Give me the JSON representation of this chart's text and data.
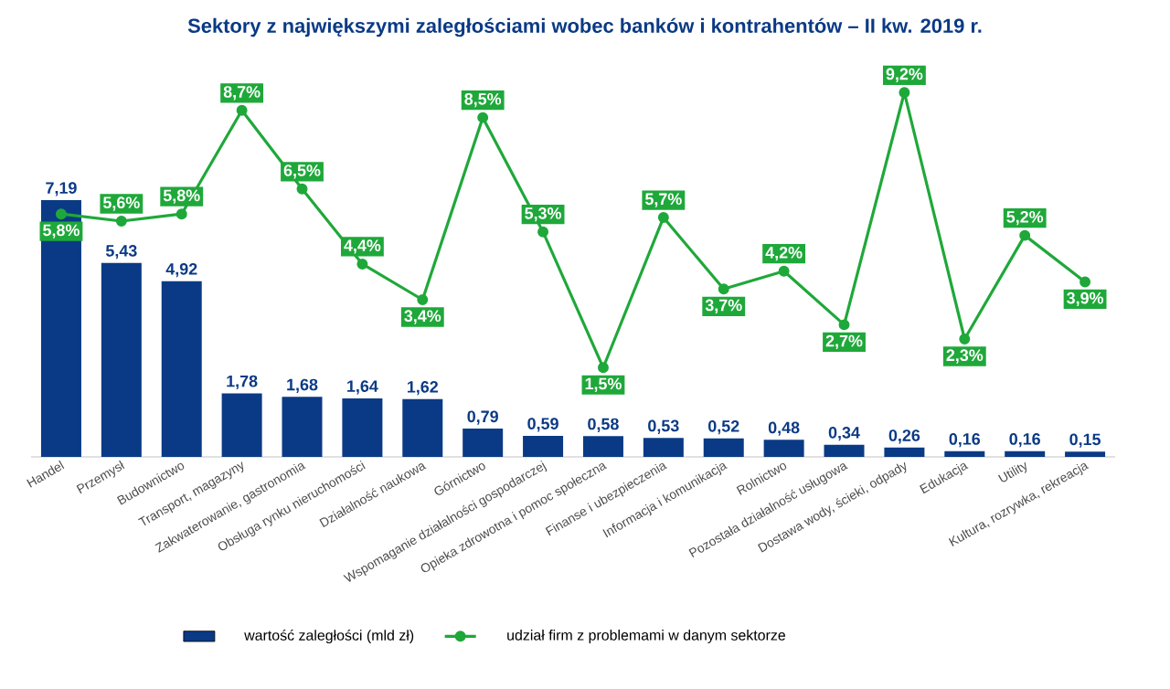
{
  "chart_data": {
    "type": "bar",
    "title": "Sektory z największymi zaległościami wobec banków i kontrahentów – II kw. 2019 r.",
    "categories": [
      "Handel",
      "Przemysł",
      "Budownictwo",
      "Transport, magazyny",
      "Zakwaterowanie, gastronomia",
      "Obsługa rynku nieruchomości",
      "Działalność naukowa",
      "Górnictwo",
      "Wspomaganie działalności gospodarczej",
      "Opieka zdrowotna i pomoc społeczna",
      "Finanse i ubezpieczenia",
      "Informacja i komunikacja",
      "Rolnictwo",
      "Pozostała działalność usługowa",
      "Dostawa wody, ścieki, odpady",
      "Edukacja",
      "Utility",
      "Kultura, rozrywka, rekreacja"
    ],
    "series": [
      {
        "name": "wartość zaległości (mld zł)",
        "color": "#0a3a85",
        "values": [
          7.19,
          5.43,
          4.92,
          1.78,
          1.68,
          1.64,
          1.62,
          0.79,
          0.59,
          0.58,
          0.53,
          0.52,
          0.48,
          0.34,
          0.26,
          0.16,
          0.16,
          0.15
        ],
        "value_labels": [
          "7,19",
          "5,43",
          "4,92",
          "1,78",
          "1,68",
          "1,64",
          "1,62",
          "0,79",
          "0,59",
          "0,58",
          "0,53",
          "0,52",
          "0,48",
          "0,34",
          "0,26",
          "0,16",
          "0,16",
          "0,15"
        ]
      },
      {
        "type": "line",
        "axis": "y2",
        "name": "udział firm z problemami w danym sektorze",
        "color": "#1fa83a",
        "values": [
          5.8,
          5.6,
          5.8,
          8.7,
          6.5,
          4.4,
          3.4,
          8.5,
          5.3,
          1.5,
          5.7,
          3.7,
          4.2,
          2.7,
          9.2,
          2.3,
          5.2,
          3.9
        ],
        "value_labels": [
          "5,8%",
          "5,6%",
          "5,8%",
          "8,7%",
          "6,5%",
          "4,4%",
          "3,4%",
          "8,5%",
          "5,3%",
          "1,5%",
          "5,7%",
          "3,7%",
          "4,2%",
          "2,7%",
          "9,2%",
          "2,3%",
          "5,2%",
          "3,9%"
        ]
      }
    ],
    "ylim": [
      0,
      11
    ],
    "y2lim": [
      -1,
      10
    ],
    "tick_labels": "x",
    "marker": "circle",
    "line_style": "solid",
    "legend": "bottom"
  }
}
